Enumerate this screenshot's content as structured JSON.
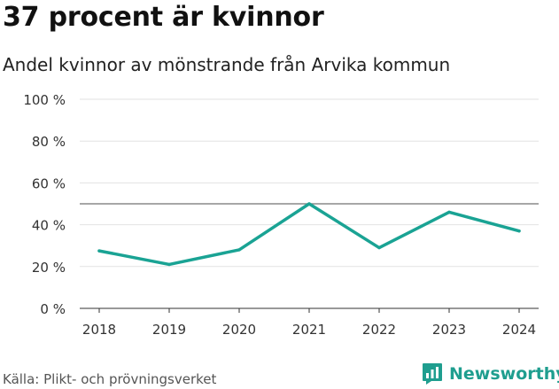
{
  "header": {
    "title": "37 procent är kvinnor",
    "subtitle": "Andel kvinnor av mönstrande från Arvika kommun"
  },
  "footer": {
    "source": "Källa: Plikt- och prövningsverket",
    "brand": "Newsworthy",
    "brand_icon": "newsworthy-logo-icon"
  },
  "colors": {
    "line": "#1aa394",
    "reference": "#8a8a8a",
    "grid": "#e2e2e2",
    "brand": "#1f9e8f"
  },
  "chart_data": {
    "type": "line",
    "title": "37 procent är kvinnor",
    "subtitle": "Andel kvinnor av mönstrande från Arvika kommun",
    "xlabel": "",
    "ylabel": "",
    "categories": [
      "2018",
      "2019",
      "2020",
      "2021",
      "2022",
      "2023",
      "2024"
    ],
    "series": [
      {
        "name": "Andel kvinnor",
        "values": [
          27.5,
          21,
          28,
          50,
          29,
          46,
          37
        ]
      }
    ],
    "reference_line": 50,
    "ylim": [
      0,
      100
    ],
    "yticks": [
      0,
      20,
      40,
      60,
      80,
      100
    ],
    "ytick_labels": [
      "0 %",
      "20 %",
      "40 %",
      "60 %",
      "80 %",
      "100 %"
    ],
    "grid": true,
    "legend": "none"
  }
}
